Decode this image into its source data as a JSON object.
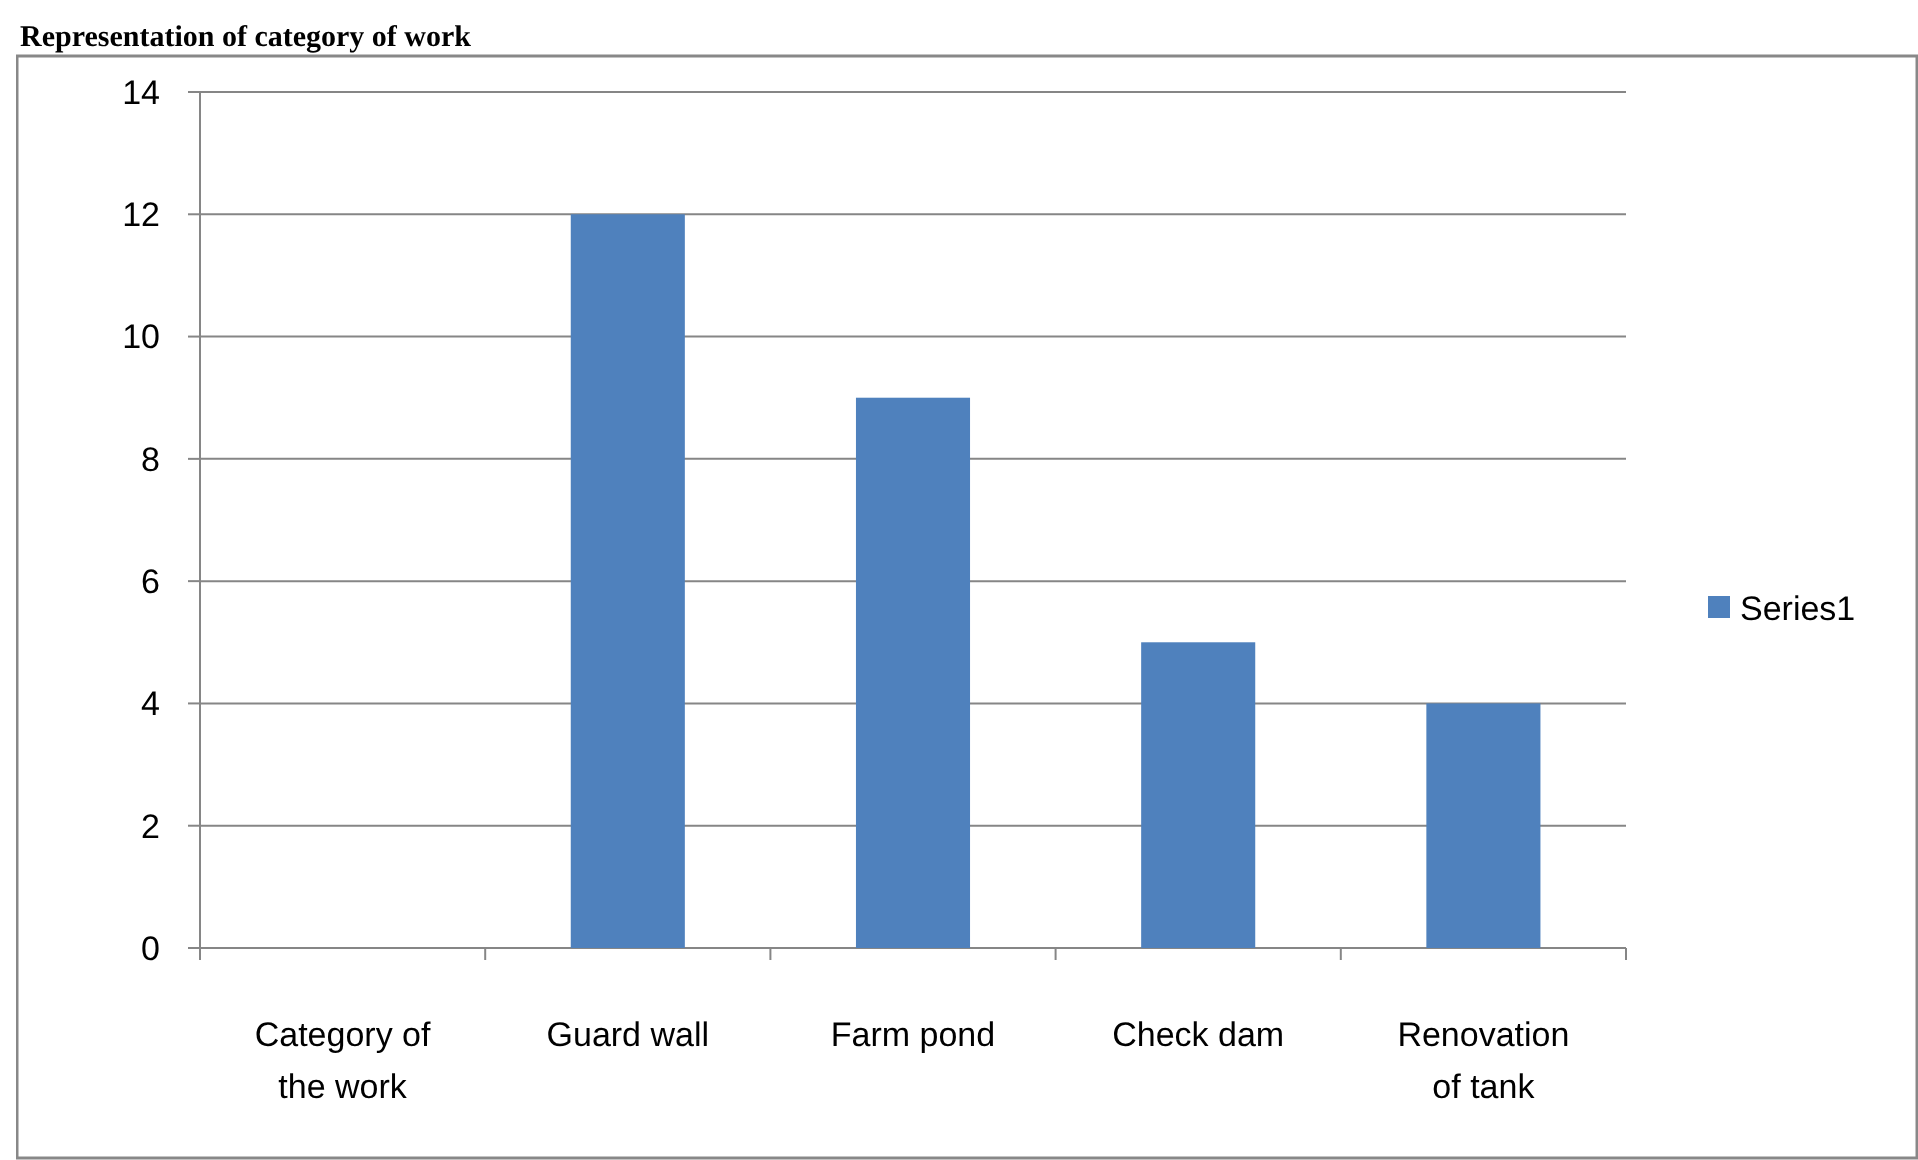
{
  "chart_data": {
    "type": "bar",
    "title": "Representation of category of work",
    "categories": [
      "Category  of the work",
      "Guard wall",
      "Farm pond",
      "Check dam",
      "Renovation of tank"
    ],
    "series": [
      {
        "name": "Series1",
        "color": "#4f81bd",
        "values": [
          null,
          12,
          9,
          5,
          4
        ]
      }
    ],
    "ylim": [
      0,
      14
    ],
    "yticks": [
      0,
      2,
      4,
      6,
      8,
      10,
      12,
      14
    ],
    "grid": "y",
    "legend": "right"
  }
}
